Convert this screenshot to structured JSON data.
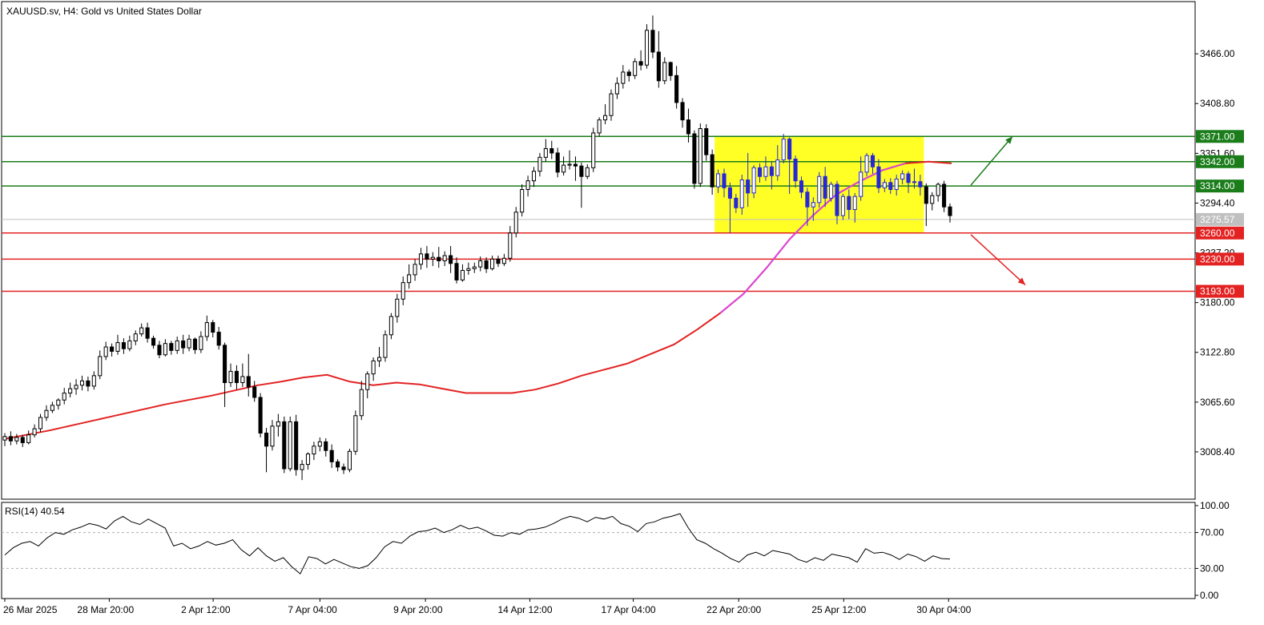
{
  "main_title": "XAUUSD.sv, H4:  Gold vs United States Dollar",
  "rsi_title": "RSI(14) 40.54",
  "chart_data": [
    {
      "type": "candlestick",
      "symbol": "XAUUSD.sv",
      "timeframe": "H4",
      "title": "XAUUSD.sv, H4:  Gold vs United States Dollar",
      "y_ticks": [
        "3466.00",
        "3408.80",
        "3351.60",
        "3294.40",
        "3237.20",
        "3180.00",
        "3122.80",
        "3065.60",
        "3008.40"
      ],
      "ylim": [
        2954,
        3526
      ],
      "x_ticks": [
        "26 Mar 2025",
        "28 Mar 20:00",
        "2 Apr 12:00",
        "7 Apr 04:00",
        "9 Apr 20:00",
        "14 Apr 12:00",
        "17 Apr 04:00",
        "22 Apr 20:00",
        "25 Apr 12:00",
        "30 Apr 04:00"
      ],
      "levels": [
        {
          "value": "3371.00",
          "color": "#1a7d1a",
          "kind": "resistance"
        },
        {
          "value": "3342.00",
          "color": "#1a7d1a",
          "kind": "resistance"
        },
        {
          "value": "3314.00",
          "color": "#1a7d1a",
          "kind": "resistance"
        },
        {
          "value": "3260.00",
          "color": "#e32222",
          "kind": "support"
        },
        {
          "value": "3230.00",
          "color": "#e32222",
          "kind": "support"
        },
        {
          "value": "3193.00",
          "color": "#e32222",
          "kind": "support"
        }
      ],
      "current_price": "3275.57",
      "moving_average": {
        "color": "#e32222",
        "values": [
          3023,
          3028,
          3033,
          3039,
          3045,
          3051,
          3057,
          3063,
          3068,
          3073,
          3079,
          3085,
          3089,
          3094,
          3097,
          3089,
          3085,
          3088,
          3086,
          3081,
          3076,
          3076,
          3076,
          3080,
          3087,
          3096,
          3103,
          3110,
          3121,
          3132,
          3149,
          3168,
          3190,
          3220,
          3253,
          3280,
          3304,
          3319,
          3332,
          3340,
          3342,
          3340
        ]
      },
      "range_box": {
        "color": "#ffff00",
        "from_value": 3260,
        "to_value": 3371
      },
      "candles": [
        [
          3022,
          3026,
          3015,
          3030
        ],
        [
          3026,
          3021,
          3016,
          3032
        ],
        [
          3021,
          3025,
          3017,
          3029
        ],
        [
          3025,
          3019,
          3014,
          3028
        ],
        [
          3019,
          3028,
          3017,
          3033
        ],
        [
          3028,
          3035,
          3025,
          3040
        ],
        [
          3035,
          3048,
          3031,
          3052
        ],
        [
          3048,
          3056,
          3044,
          3062
        ],
        [
          3056,
          3062,
          3053,
          3066
        ],
        [
          3062,
          3068,
          3057,
          3070
        ],
        [
          3068,
          3076,
          3063,
          3082
        ],
        [
          3076,
          3081,
          3071,
          3088
        ],
        [
          3081,
          3085,
          3074,
          3092
        ],
        [
          3085,
          3090,
          3079,
          3096
        ],
        [
          3090,
          3084,
          3078,
          3095
        ],
        [
          3084,
          3096,
          3080,
          3101
        ],
        [
          3096,
          3118,
          3092,
          3125
        ],
        [
          3118,
          3129,
          3114,
          3135
        ],
        [
          3129,
          3124,
          3118,
          3133
        ],
        [
          3124,
          3134,
          3120,
          3143
        ],
        [
          3134,
          3127,
          3121,
          3139
        ],
        [
          3127,
          3136,
          3124,
          3142
        ],
        [
          3136,
          3144,
          3131,
          3148
        ],
        [
          3144,
          3151,
          3141,
          3156
        ],
        [
          3151,
          3139,
          3134,
          3157
        ],
        [
          3139,
          3131,
          3127,
          3142
        ],
        [
          3131,
          3120,
          3116,
          3136
        ],
        [
          3120,
          3133,
          3118,
          3138
        ],
        [
          3133,
          3125,
          3120,
          3136
        ],
        [
          3125,
          3136,
          3121,
          3141
        ],
        [
          3136,
          3128,
          3121,
          3143
        ],
        [
          3128,
          3138,
          3124,
          3143
        ],
        [
          3138,
          3126,
          3121,
          3140
        ],
        [
          3126,
          3141,
          3122,
          3147
        ],
        [
          3141,
          3157,
          3136,
          3165
        ],
        [
          3157,
          3146,
          3140,
          3160
        ],
        [
          3146,
          3131,
          3126,
          3152
        ],
        [
          3131,
          3088,
          3060,
          3134
        ],
        [
          3088,
          3101,
          3083,
          3110
        ],
        [
          3101,
          3088,
          3080,
          3108
        ],
        [
          3088,
          3095,
          3083,
          3110
        ],
        [
          3095,
          3083,
          3072,
          3121
        ],
        [
          3083,
          3071,
          3066,
          3090
        ],
        [
          3071,
          3030,
          3025,
          3076
        ],
        [
          3030,
          3015,
          2985,
          3036
        ],
        [
          3015,
          3038,
          3010,
          3045
        ],
        [
          3038,
          3043,
          3026,
          3052
        ],
        [
          3043,
          2989,
          2984,
          3049
        ],
        [
          2989,
          3043,
          2986,
          3049
        ],
        [
          3043,
          2988,
          2981,
          3051
        ],
        [
          2988,
          2994,
          2976,
          2999
        ],
        [
          2994,
          3006,
          2988,
          3008
        ],
        [
          3006,
          3015,
          2999,
          3020
        ],
        [
          3015,
          3020,
          3009,
          3025
        ],
        [
          3020,
          3010,
          3003,
          3024
        ],
        [
          3010,
          2997,
          2990,
          3017
        ],
        [
          2997,
          2991,
          2986,
          3000
        ],
        [
          2991,
          2988,
          2983,
          2995
        ],
        [
          2988,
          3009,
          2985,
          3012
        ],
        [
          3009,
          3050,
          3005,
          3056
        ],
        [
          3050,
          3080,
          3045,
          3090
        ],
        [
          3080,
          3098,
          3070,
          3101
        ],
        [
          3098,
          3113,
          3090,
          3117
        ],
        [
          3113,
          3117,
          3106,
          3129
        ],
        [
          3117,
          3143,
          3112,
          3148
        ],
        [
          3143,
          3164,
          3138,
          3168
        ],
        [
          3164,
          3184,
          3157,
          3190
        ],
        [
          3184,
          3203,
          3177,
          3210
        ],
        [
          3203,
          3212,
          3196,
          3224
        ],
        [
          3212,
          3224,
          3205,
          3230
        ],
        [
          3224,
          3236,
          3218,
          3243
        ],
        [
          3236,
          3230,
          3220,
          3245
        ],
        [
          3230,
          3232,
          3222,
          3238
        ],
        [
          3232,
          3228,
          3220,
          3244
        ],
        [
          3228,
          3234,
          3222,
          3239
        ],
        [
          3234,
          3225,
          3214,
          3245
        ],
        [
          3225,
          3206,
          3202,
          3232
        ],
        [
          3206,
          3217,
          3204,
          3224
        ],
        [
          3217,
          3219,
          3212,
          3226
        ],
        [
          3219,
          3221,
          3214,
          3226
        ],
        [
          3221,
          3228,
          3216,
          3233
        ],
        [
          3228,
          3219,
          3214,
          3232
        ],
        [
          3219,
          3230,
          3217,
          3234
        ],
        [
          3230,
          3225,
          3221,
          3234
        ],
        [
          3225,
          3231,
          3222,
          3236
        ],
        [
          3231,
          3260,
          3227,
          3268
        ],
        [
          3260,
          3284,
          3255,
          3290
        ],
        [
          3284,
          3310,
          3279,
          3316
        ],
        [
          3310,
          3320,
          3302,
          3326
        ],
        [
          3320,
          3331,
          3313,
          3336
        ],
        [
          3331,
          3347,
          3325,
          3352
        ],
        [
          3347,
          3357,
          3342,
          3368
        ],
        [
          3357,
          3352,
          3345,
          3366
        ],
        [
          3352,
          3330,
          3324,
          3358
        ],
        [
          3330,
          3338,
          3326,
          3348
        ],
        [
          3338,
          3339,
          3333,
          3355
        ],
        [
          3339,
          3337,
          3320,
          3348
        ],
        [
          3337,
          3325,
          3289,
          3341
        ],
        [
          3325,
          3335,
          3322,
          3339
        ],
        [
          3335,
          3375,
          3330,
          3381
        ],
        [
          3375,
          3390,
          3371,
          3393
        ],
        [
          3390,
          3395,
          3385,
          3408
        ],
        [
          3395,
          3420,
          3389,
          3425
        ],
        [
          3420,
          3432,
          3414,
          3439
        ],
        [
          3432,
          3445,
          3426,
          3453
        ],
        [
          3445,
          3441,
          3434,
          3448
        ],
        [
          3441,
          3457,
          3437,
          3461
        ],
        [
          3457,
          3453,
          3447,
          3470
        ],
        [
          3453,
          3493,
          3449,
          3500
        ],
        [
          3493,
          3468,
          3461,
          3510
        ],
        [
          3468,
          3435,
          3427,
          3492
        ],
        [
          3435,
          3456,
          3431,
          3462
        ],
        [
          3456,
          3441,
          3435,
          3457
        ],
        [
          3441,
          3410,
          3403,
          3452
        ],
        [
          3410,
          3390,
          3381,
          3415
        ],
        [
          3390,
          3374,
          3364,
          3403
        ],
        [
          3374,
          3317,
          3311,
          3378
        ],
        [
          3317,
          3380,
          3313,
          3386
        ],
        [
          3380,
          3350,
          3343,
          3385
        ],
        [
          3350,
          3313,
          3304,
          3356
        ]
      ],
      "ranging_candles": [
        [
          3313,
          3328,
          3306,
          3333
        ],
        [
          3328,
          3312,
          3301,
          3334
        ],
        [
          3312,
          3300,
          3260,
          3318
        ],
        [
          3300,
          3289,
          3283,
          3305
        ],
        [
          3289,
          3321,
          3281,
          3327
        ],
        [
          3321,
          3306,
          3290,
          3352
        ],
        [
          3306,
          3335,
          3300,
          3338
        ],
        [
          3335,
          3325,
          3318,
          3340
        ],
        [
          3325,
          3336,
          3320,
          3348
        ],
        [
          3336,
          3326,
          3310,
          3342
        ],
        [
          3326,
          3344,
          3320,
          3361
        ],
        [
          3344,
          3368,
          3340,
          3374
        ],
        [
          3368,
          3345,
          3305,
          3370
        ],
        [
          3345,
          3320,
          3312,
          3349
        ],
        [
          3320,
          3307,
          3300,
          3325
        ],
        [
          3307,
          3290,
          3268,
          3312
        ],
        [
          3290,
          3295,
          3274,
          3301
        ],
        [
          3295,
          3325,
          3289,
          3330
        ],
        [
          3325,
          3300,
          3290,
          3336
        ],
        [
          3300,
          3316,
          3296,
          3319
        ],
        [
          3316,
          3280,
          3270,
          3320
        ],
        [
          3280,
          3302,
          3275,
          3305
        ],
        [
          3302,
          3287,
          3276,
          3310
        ],
        [
          3287,
          3302,
          3272,
          3306
        ],
        [
          3302,
          3330,
          3297,
          3348
        ],
        [
          3330,
          3349,
          3325,
          3352
        ],
        [
          3349,
          3336,
          3328,
          3352
        ],
        [
          3336,
          3312,
          3306,
          3345
        ],
        [
          3312,
          3318,
          3307,
          3322
        ],
        [
          3318,
          3310,
          3305,
          3323
        ],
        [
          3310,
          3322,
          3303,
          3327
        ],
        [
          3322,
          3328,
          3316,
          3332
        ],
        [
          3328,
          3318,
          3306,
          3331
        ],
        [
          3318,
          3319,
          3311,
          3334
        ],
        [
          3319,
          3313,
          3303,
          3327
        ]
      ],
      "tail_candles": [
        [
          3313,
          3294,
          3268,
          3317
        ],
        [
          3294,
          3303,
          3286,
          3307
        ],
        [
          3303,
          3316,
          3296,
          3318
        ],
        [
          3316,
          3290,
          3284,
          3320
        ],
        [
          3290,
          3280,
          3272,
          3294
        ]
      ]
    },
    {
      "type": "line",
      "title": "RSI(14) 40.54",
      "name": "RSI(14)",
      "ylim": [
        0,
        100
      ],
      "y_ticks": [
        "100.00",
        "70.00",
        "30.00",
        "0.00"
      ],
      "levels": [
        70,
        30
      ],
      "values": [
        45,
        53,
        58,
        60,
        55,
        64,
        70,
        68,
        73,
        76,
        80,
        78,
        74,
        83,
        88,
        82,
        79,
        85,
        80,
        75,
        55,
        58,
        52,
        55,
        60,
        56,
        58,
        62,
        51,
        44,
        53,
        44,
        38,
        42,
        32,
        24,
        43,
        41,
        35,
        40,
        36,
        32,
        30,
        33,
        42,
        54,
        60,
        58,
        66,
        71,
        72,
        75,
        70,
        73,
        78,
        74,
        76,
        72,
        67,
        66,
        70,
        68,
        73,
        74,
        76,
        80,
        85,
        88,
        86,
        82,
        87,
        85,
        88,
        80,
        77,
        71,
        80,
        82,
        86,
        88,
        91,
        75,
        62,
        58,
        52,
        47,
        41,
        37,
        45,
        48,
        44,
        50,
        48,
        46,
        40,
        37,
        42,
        39,
        46,
        44,
        42,
        37,
        52,
        47,
        48,
        45,
        40,
        46,
        43,
        38,
        44,
        41,
        40.54
      ]
    }
  ],
  "colors": {
    "bull": "#ffffff",
    "bear": "#000000",
    "ranging_bull": "#ffffff",
    "ranging_bear": "#2727d8",
    "ma": "#e32222",
    "ma_overlay": "#d946d9",
    "up_arrow": "#1a7d1a",
    "down_arrow": "#e32222",
    "range_box": "#ffff00",
    "current_price_tag": "#c0c0c0"
  }
}
